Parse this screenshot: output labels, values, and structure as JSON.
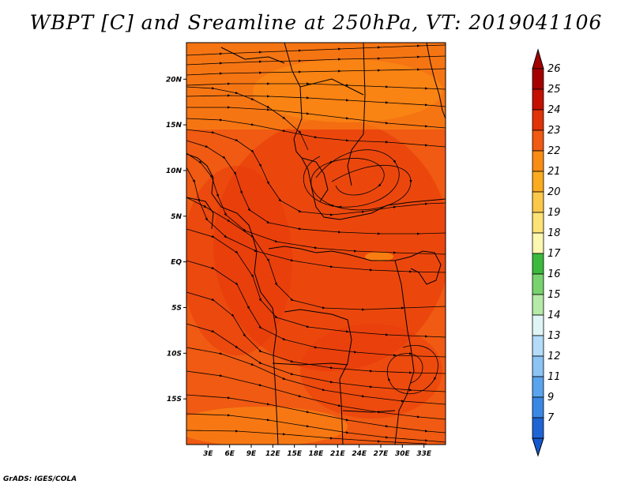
{
  "title": "WBPT [C] and Sreamline at 250hPa, VT: 2019041106",
  "credit": "GrADS: IGES/COLA",
  "map": {
    "field": "Wet bulb potential temperature (C) with 250hPa streamlines",
    "lon_range": [
      0,
      36
    ],
    "lat_range": [
      -20,
      24
    ],
    "lat_ticks": [
      {
        "value": 20,
        "label": "20N"
      },
      {
        "value": 15,
        "label": "15N"
      },
      {
        "value": 10,
        "label": "10N"
      },
      {
        "value": 5,
        "label": "5N"
      },
      {
        "value": 0,
        "label": "EQ"
      },
      {
        "value": -5,
        "label": "5S"
      },
      {
        "value": -10,
        "label": "10S"
      },
      {
        "value": -15,
        "label": "15S"
      }
    ],
    "lon_ticks": [
      {
        "value": 3,
        "label": "3E"
      },
      {
        "value": 6,
        "label": "6E"
      },
      {
        "value": 9,
        "label": "9E"
      },
      {
        "value": 12,
        "label": "12E"
      },
      {
        "value": 15,
        "label": "15E"
      },
      {
        "value": 18,
        "label": "18E"
      },
      {
        "value": 21,
        "label": "21E"
      },
      {
        "value": 24,
        "label": "24E"
      },
      {
        "value": 27,
        "label": "27E"
      },
      {
        "value": 30,
        "label": "30E"
      },
      {
        "value": 33,
        "label": "33E"
      }
    ],
    "base_color": "#f05a12",
    "warm_color": "#e8380a",
    "cool_color": "#fb8c14",
    "line_color": "#000000"
  },
  "colorbar": {
    "levels": [
      {
        "label": "26",
        "color": "#a50000"
      },
      {
        "label": "25",
        "color": "#c41000"
      },
      {
        "label": "24",
        "color": "#e23208"
      },
      {
        "label": "23",
        "color": "#f05a12"
      },
      {
        "label": "22",
        "color": "#fa8c14"
      },
      {
        "label": "21",
        "color": "#fbab20"
      },
      {
        "label": "20",
        "color": "#fcc84a"
      },
      {
        "label": "19",
        "color": "#fde276"
      },
      {
        "label": "18",
        "color": "#fef7b0"
      },
      {
        "label": "17",
        "color": "#3cba3c"
      },
      {
        "label": "16",
        "color": "#78d36e"
      },
      {
        "label": "15",
        "color": "#b6eaa8"
      },
      {
        "label": "14",
        "color": "#e0f6f6"
      },
      {
        "label": "13",
        "color": "#b4dcf8"
      },
      {
        "label": "12",
        "color": "#8cc4f4"
      },
      {
        "label": "11",
        "color": "#5aa4ee"
      },
      {
        "label": "9",
        "color": "#3a88e6"
      },
      {
        "label": "7",
        "color": "#1e64d4"
      }
    ],
    "below_color": "#1458d0"
  }
}
